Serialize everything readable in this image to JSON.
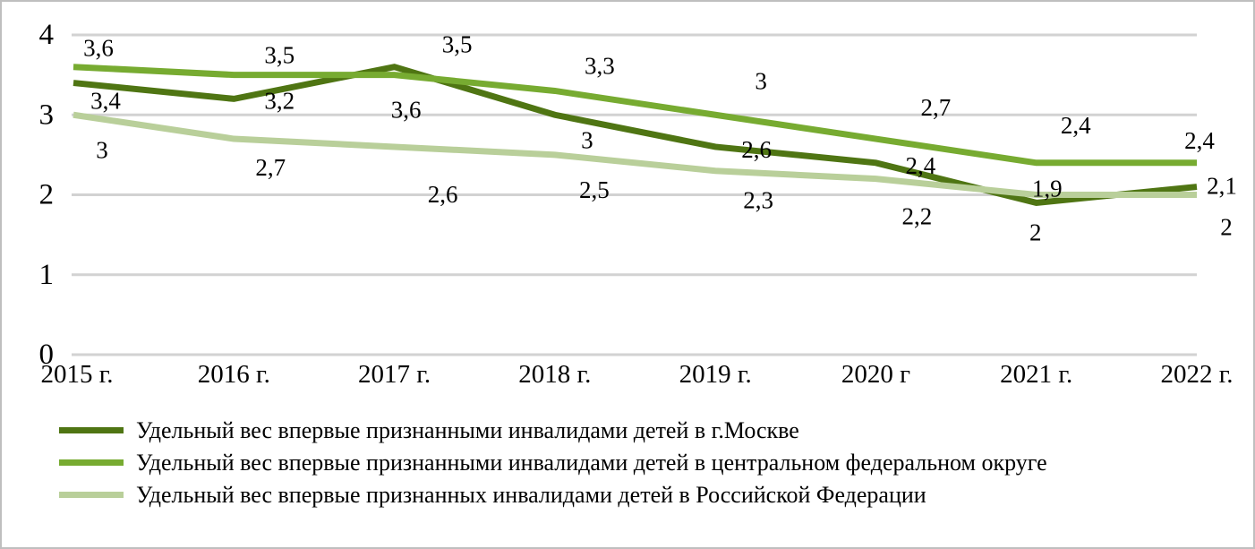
{
  "chart_data": {
    "type": "line",
    "categories": [
      "2015 г.",
      "2016 г.",
      "2017 г.",
      "2018 г.",
      "2019 г.",
      "2020 г",
      "2021 г.",
      "2022 г."
    ],
    "series": [
      {
        "name": "Удельный вес впервые признанными инвалидами детей в г.Москве",
        "color": "#4f7513",
        "values": [
          3.4,
          3.2,
          3.6,
          3,
          2.6,
          2.4,
          1.9,
          2.1
        ],
        "labels": [
          "3,4",
          "3,2",
          "3,6",
          "3",
          "2,6",
          "2,4",
          "1,9",
          "2,1"
        ]
      },
      {
        "name": "Удельный вес впервые признанными инвалидами детей в центральном федеральном округе",
        "color": "#77ab31",
        "values": [
          3.6,
          3.5,
          3.5,
          3.3,
          3,
          2.7,
          2.4,
          2.4
        ],
        "labels": [
          "3,6",
          "3,5",
          "3,5",
          "3,3",
          "3",
          "2,7",
          "2,4",
          "2,4"
        ]
      },
      {
        "name": "Удельный вес впервые признанных инвалидами детей в Российской Федерации",
        "color": "#b9cf9a",
        "values": [
          3,
          2.7,
          2.6,
          2.5,
          2.3,
          2.2,
          2,
          2
        ],
        "labels": [
          "3",
          "2,7",
          "2,6",
          "2,5",
          "2,3",
          "2,2",
          "2",
          "2"
        ]
      }
    ],
    "title": "",
    "xlabel": "",
    "ylabel": "",
    "ylim": [
      0,
      4
    ],
    "yticks": [
      0,
      1,
      2,
      3,
      4
    ],
    "grid": true,
    "gridline_color": "#d2d2d2",
    "text_color": "#000000",
    "legend_position": "bottom",
    "decimal_separator": ","
  }
}
